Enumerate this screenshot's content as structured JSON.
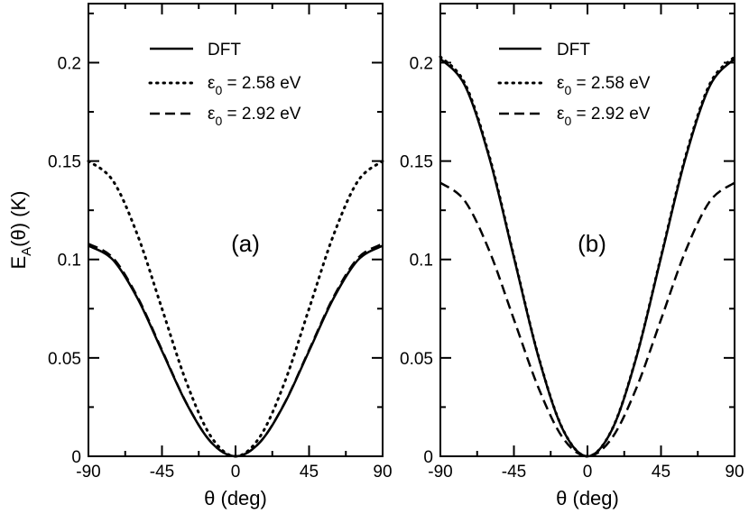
{
  "chart_data": [
    {
      "type": "line",
      "panel_label": "(a)",
      "xlabel": "θ (deg)",
      "ylabel": "E_A(θ) (K)",
      "xlim": [
        -90,
        90
      ],
      "ylim": [
        0,
        0.23
      ],
      "xticks": [
        -90,
        -45,
        0,
        45,
        90
      ],
      "xtick_labels": [
        "-90",
        "-45",
        "0",
        "45",
        "90"
      ],
      "yticks": [
        0,
        0.05,
        0.1,
        0.15,
        0.2
      ],
      "ytick_labels": [
        "0",
        "0.05",
        "0.1",
        "0.15",
        "0.2"
      ],
      "x": [
        -90,
        -75,
        -60,
        -45,
        -30,
        -15,
        0,
        15,
        30,
        45,
        60,
        75,
        90
      ],
      "series": [
        {
          "name": "DFT",
          "style": "solid",
          "values": [
            0.107,
            0.0998,
            0.0803,
            0.0535,
            0.0268,
            0.0072,
            0,
            0.0072,
            0.0268,
            0.0535,
            0.0803,
            0.0998,
            0.107
          ]
        },
        {
          "name": "ε0 = 2.58 eV",
          "style": "dotted",
          "values": [
            0.15,
            0.14,
            0.1125,
            0.075,
            0.0375,
            0.01,
            0,
            0.01,
            0.0375,
            0.075,
            0.1125,
            0.14,
            0.15
          ]
        },
        {
          "name": "ε0 = 2.92 eV",
          "style": "dashed",
          "values": [
            0.108,
            0.1008,
            0.081,
            0.054,
            0.027,
            0.0072,
            0,
            0.0072,
            0.027,
            0.054,
            0.081,
            0.1008,
            0.108
          ]
        }
      ]
    },
    {
      "type": "line",
      "panel_label": "(b)",
      "xlabel": "θ (deg)",
      "ylabel": "",
      "xlim": [
        -90,
        90
      ],
      "ylim": [
        0,
        0.23
      ],
      "xticks": [
        -90,
        -45,
        0,
        45,
        90
      ],
      "xtick_labels": [
        "-90",
        "-45",
        "0",
        "45",
        "90"
      ],
      "yticks": [
        0,
        0.05,
        0.1,
        0.15,
        0.2
      ],
      "ytick_labels": [
        "0",
        "0.05",
        "0.1",
        "0.15",
        "0.2"
      ],
      "x": [
        -90,
        -75,
        -60,
        -45,
        -30,
        -15,
        0,
        15,
        30,
        45,
        60,
        75,
        90
      ],
      "series": [
        {
          "name": "DFT",
          "style": "solid",
          "values": [
            0.202,
            0.1884,
            0.1515,
            0.101,
            0.0505,
            0.0135,
            0,
            0.0135,
            0.0505,
            0.101,
            0.1515,
            0.1884,
            0.202
          ]
        },
        {
          "name": "ε0 = 2.58 eV",
          "style": "dotted",
          "values": [
            0.203,
            0.1894,
            0.1523,
            0.1015,
            0.0508,
            0.0136,
            0,
            0.0136,
            0.0508,
            0.1015,
            0.1523,
            0.1894,
            0.203
          ]
        },
        {
          "name": "ε0 = 2.92 eV",
          "style": "dashed",
          "values": [
            0.139,
            0.1297,
            0.1043,
            0.0695,
            0.0348,
            0.0093,
            0,
            0.0093,
            0.0348,
            0.0695,
            0.1043,
            0.1297,
            0.139
          ]
        }
      ]
    }
  ],
  "legend": {
    "dft": "DFT",
    "eps_symbol": "ε",
    "eps_sub": "0",
    "eps1_value": " = 2.58 eV",
    "eps2_value": " = 2.92 eV"
  },
  "ylabel_parts": {
    "base": "E",
    "sub": "A",
    "rest": "(θ) (K)"
  }
}
